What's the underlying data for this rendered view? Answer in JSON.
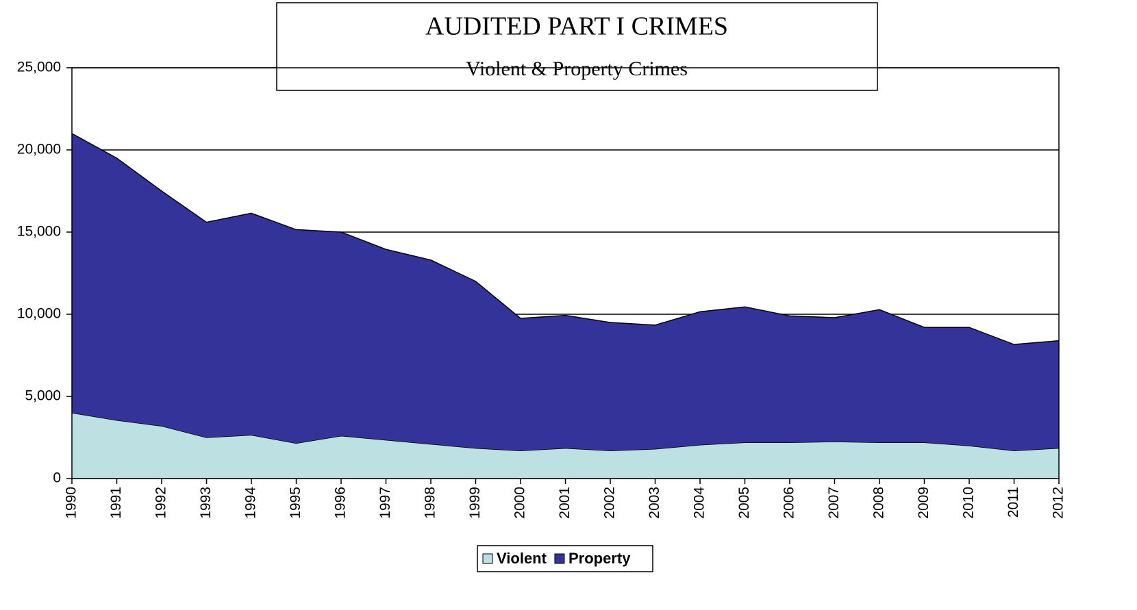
{
  "chart_data": {
    "type": "stacked-area",
    "title": "AUDITED PART I CRIMES",
    "subtitle": "Violent & Property Crimes",
    "categories": [
      "1990",
      "1991",
      "1992",
      "1993",
      "1994",
      "1995",
      "1996",
      "1997",
      "1998",
      "1999",
      "2000",
      "2001",
      "2002",
      "2003",
      "2004",
      "2005",
      "2006",
      "2007",
      "2008",
      "2009",
      "2010",
      "2011",
      "2012"
    ],
    "series": [
      {
        "name": "Violent",
        "color": "#bde0e3",
        "values": [
          4000,
          3550,
          3200,
          2500,
          2650,
          2150,
          2600,
          2350,
          2100,
          1850,
          1700,
          1850,
          1700,
          1800,
          2050,
          2200,
          2200,
          2250,
          2200,
          2200,
          2000,
          1700,
          1850
        ]
      },
      {
        "name": "Property",
        "color": "#333399",
        "values": [
          17000,
          15950,
          14300,
          13100,
          13500,
          13000,
          12400,
          11600,
          11200,
          10150,
          8050,
          8080,
          7800,
          7540,
          8100,
          8250,
          7700,
          7540,
          8080,
          7000,
          7200,
          6460,
          6540
        ]
      }
    ],
    "ylim": [
      0,
      25000
    ],
    "yticks": [
      0,
      {
        "value": 5000,
        "label": "5,000"
      },
      {
        "value": 10000,
        "label": "10,000"
      },
      {
        "value": 15000,
        "label": "15,000"
      },
      {
        "value": 20000,
        "label": "20,000"
      },
      {
        "value": 25000,
        "label": "25,000"
      }
    ],
    "grid": true
  }
}
